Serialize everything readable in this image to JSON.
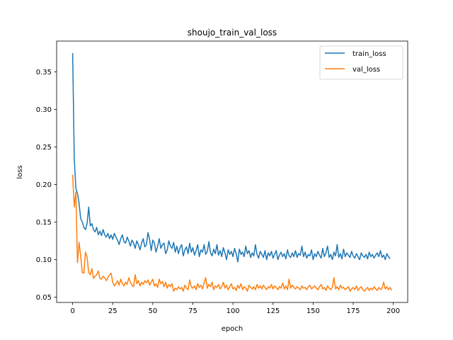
{
  "chart_data": {
    "type": "line",
    "title": "shoujo_train_val_loss",
    "xlabel": "epoch",
    "ylabel": "loss",
    "xlim": [
      -10,
      209
    ],
    "ylim": [
      0.043,
      0.391
    ],
    "xticks": [
      0,
      25,
      50,
      75,
      100,
      125,
      150,
      175,
      200
    ],
    "yticks": [
      0.05,
      0.1,
      0.15,
      0.2,
      0.25,
      0.3,
      0.35
    ],
    "ytick_labels": [
      "0.05",
      "0.10",
      "0.15",
      "0.20",
      "0.25",
      "0.30",
      "0.35"
    ],
    "grid": false,
    "legend_position": "top-right",
    "series": [
      {
        "name": "train_loss",
        "color": "#1f77b4",
        "values": [
          0.375,
          0.235,
          0.195,
          0.188,
          0.175,
          0.155,
          0.15,
          0.143,
          0.14,
          0.148,
          0.17,
          0.145,
          0.148,
          0.14,
          0.137,
          0.143,
          0.133,
          0.138,
          0.132,
          0.14,
          0.133,
          0.13,
          0.135,
          0.128,
          0.133,
          0.127,
          0.135,
          0.13,
          0.126,
          0.12,
          0.128,
          0.133,
          0.124,
          0.122,
          0.13,
          0.125,
          0.118,
          0.126,
          0.122,
          0.115,
          0.125,
          0.12,
          0.113,
          0.122,
          0.128,
          0.117,
          0.12,
          0.136,
          0.127,
          0.112,
          0.126,
          0.122,
          0.11,
          0.118,
          0.128,
          0.115,
          0.12,
          0.122,
          0.108,
          0.113,
          0.125,
          0.118,
          0.115,
          0.123,
          0.11,
          0.118,
          0.108,
          0.116,
          0.12,
          0.105,
          0.113,
          0.117,
          0.108,
          0.122,
          0.11,
          0.116,
          0.106,
          0.112,
          0.12,
          0.104,
          0.113,
          0.11,
          0.12,
          0.107,
          0.111,
          0.124,
          0.109,
          0.105,
          0.114,
          0.108,
          0.12,
          0.106,
          0.112,
          0.104,
          0.116,
          0.109,
          0.1,
          0.113,
          0.107,
          0.111,
          0.104,
          0.115,
          0.108,
          0.097,
          0.114,
          0.107,
          0.11,
          0.104,
          0.118,
          0.108,
          0.112,
          0.103,
          0.109,
          0.105,
          0.12,
          0.107,
          0.102,
          0.111,
          0.107,
          0.103,
          0.112,
          0.1,
          0.109,
          0.105,
          0.111,
          0.102,
          0.107,
          0.112,
          0.1,
          0.106,
          0.11,
          0.104,
          0.108,
          0.101,
          0.113,
          0.105,
          0.103,
          0.109,
          0.104,
          0.112,
          0.103,
          0.108,
          0.106,
          0.118,
          0.104,
          0.11,
          0.102,
          0.107,
          0.105,
          0.113,
          0.1,
          0.108,
          0.104,
          0.111,
          0.106,
          0.102,
          0.115,
          0.104,
          0.109,
          0.118,
          0.103,
          0.107,
          0.1,
          0.11,
          0.105,
          0.12,
          0.103,
          0.108,
          0.101,
          0.114,
          0.104,
          0.109,
          0.106,
          0.103,
          0.111,
          0.105,
          0.102,
          0.108,
          0.104,
          0.1,
          0.109,
          0.105,
          0.103,
          0.107,
          0.101,
          0.11,
          0.104,
          0.107,
          0.102,
          0.106,
          0.109,
          0.104,
          0.112,
          0.103,
          0.106,
          0.1,
          0.108,
          0.104,
          0.101
        ]
      },
      {
        "name": "val_loss",
        "color": "#ff7f0e",
        "values": [
          0.213,
          0.17,
          0.19,
          0.096,
          0.123,
          0.105,
          0.083,
          0.082,
          0.11,
          0.103,
          0.083,
          0.08,
          0.088,
          0.075,
          0.078,
          0.08,
          0.085,
          0.075,
          0.074,
          0.078,
          0.076,
          0.072,
          0.076,
          0.08,
          0.082,
          0.07,
          0.065,
          0.068,
          0.072,
          0.066,
          0.074,
          0.068,
          0.065,
          0.07,
          0.067,
          0.076,
          0.07,
          0.066,
          0.064,
          0.08,
          0.068,
          0.072,
          0.065,
          0.07,
          0.067,
          0.072,
          0.069,
          0.073,
          0.066,
          0.07,
          0.074,
          0.065,
          0.068,
          0.063,
          0.074,
          0.068,
          0.071,
          0.064,
          0.07,
          0.062,
          0.067,
          0.064,
          0.068,
          0.058,
          0.062,
          0.06,
          0.064,
          0.061,
          0.063,
          0.058,
          0.066,
          0.062,
          0.06,
          0.073,
          0.064,
          0.062,
          0.065,
          0.06,
          0.068,
          0.063,
          0.066,
          0.061,
          0.069,
          0.076,
          0.062,
          0.067,
          0.064,
          0.07,
          0.06,
          0.065,
          0.063,
          0.067,
          0.061,
          0.064,
          0.07,
          0.062,
          0.066,
          0.06,
          0.064,
          0.068,
          0.061,
          0.063,
          0.059,
          0.066,
          0.062,
          0.068,
          0.06,
          0.064,
          0.062,
          0.058,
          0.066,
          0.063,
          0.061,
          0.064,
          0.06,
          0.067,
          0.062,
          0.065,
          0.061,
          0.066,
          0.063,
          0.06,
          0.064,
          0.062,
          0.067,
          0.061,
          0.065,
          0.063,
          0.06,
          0.064,
          0.062,
          0.069,
          0.061,
          0.065,
          0.06,
          0.074,
          0.062,
          0.066,
          0.063,
          0.061,
          0.064,
          0.062,
          0.06,
          0.065,
          0.062,
          0.063,
          0.06,
          0.064,
          0.066,
          0.061,
          0.063,
          0.065,
          0.062,
          0.06,
          0.064,
          0.067,
          0.061,
          0.063,
          0.059,
          0.065,
          0.062,
          0.06,
          0.063,
          0.076,
          0.061,
          0.064,
          0.06,
          0.066,
          0.062,
          0.063,
          0.06,
          0.062,
          0.064,
          0.058,
          0.061,
          0.063,
          0.06,
          0.065,
          0.059,
          0.062,
          0.064,
          0.06,
          0.058,
          0.061,
          0.063,
          0.059,
          0.062,
          0.06,
          0.064,
          0.061,
          0.059,
          0.063,
          0.06,
          0.062,
          0.07,
          0.061,
          0.064,
          0.06,
          0.063,
          0.059
        ]
      }
    ]
  }
}
